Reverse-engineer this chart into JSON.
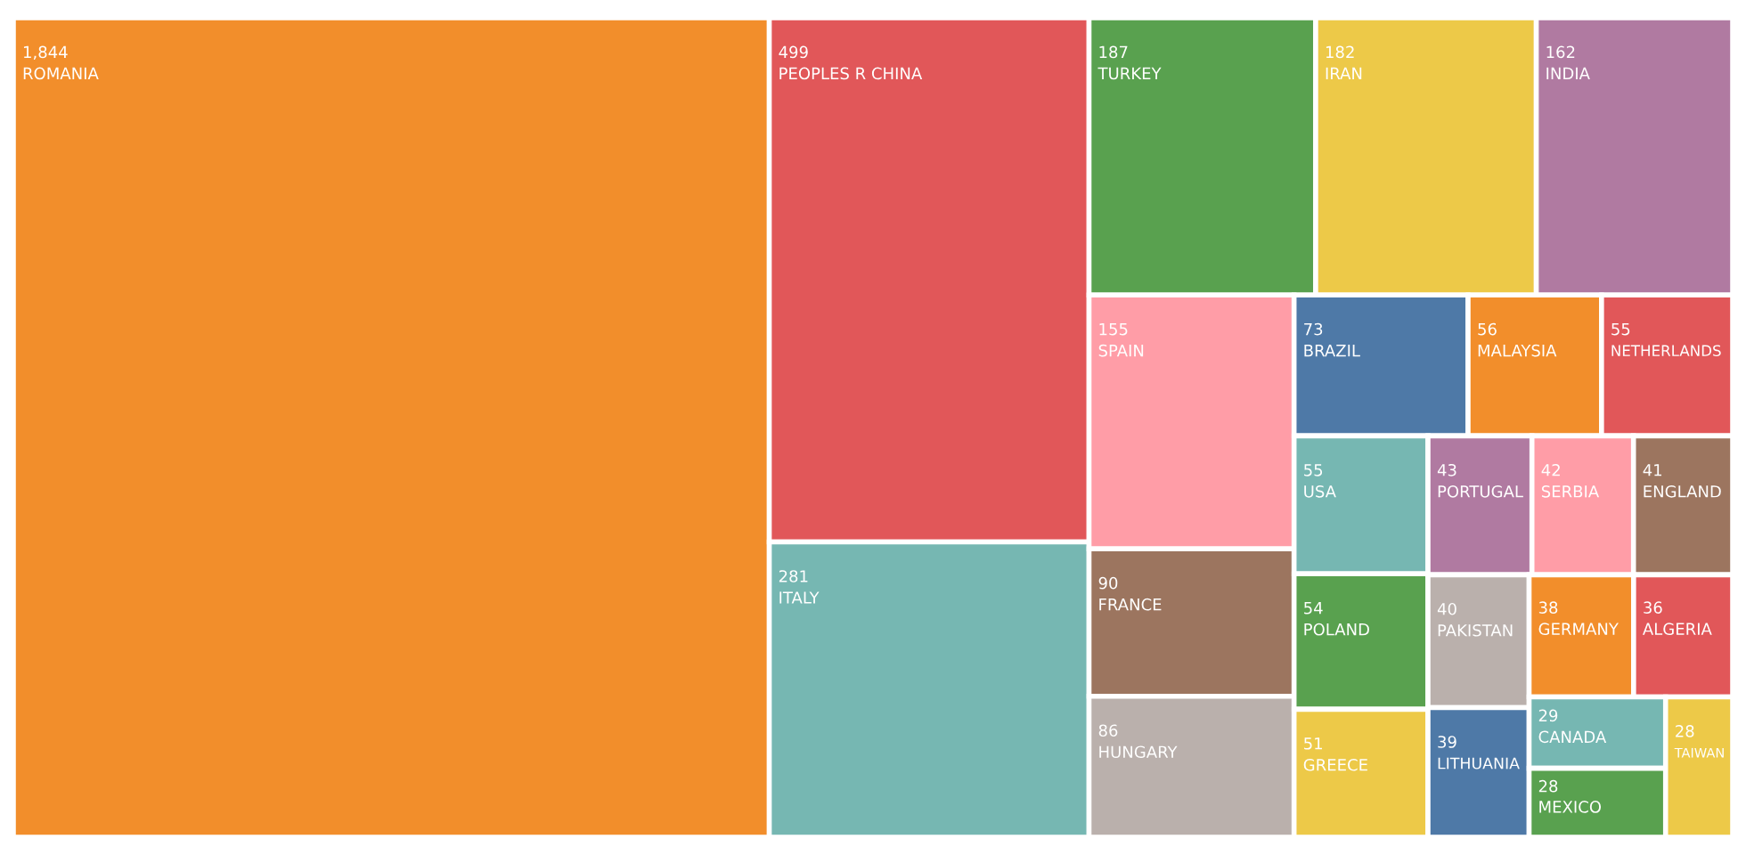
{
  "chart_data": {
    "type": "other",
    "value_labels": [
      "1,844",
      "499",
      "281",
      "187",
      "182",
      "162",
      "155",
      "90",
      "86",
      "73",
      "56",
      "55",
      "55",
      "54",
      "51",
      "43",
      "42",
      "41",
      "40",
      "39",
      "38",
      "36",
      "29",
      "28",
      "28"
    ],
    "categories": [
      "ROMANIA",
      "PEOPLES R CHINA",
      "ITALY",
      "TURKEY",
      "IRAN",
      "INDIA",
      "SPAIN",
      "FRANCE",
      "HUNGARY",
      "BRAZIL",
      "MALAYSIA",
      "NETHERLANDS",
      "USA",
      "POLAND",
      "GREECE",
      "PORTUGAL",
      "SERBIA",
      "ENGLAND",
      "PAKISTAN",
      "LITHUANIA",
      "GERMANY",
      "ALGERIA",
      "CANADA",
      "MEXICO",
      "TAIWAN"
    ],
    "values": [
      1844,
      499,
      281,
      187,
      182,
      162,
      155,
      90,
      86,
      73,
      56,
      55,
      55,
      54,
      51,
      43,
      42,
      41,
      40,
      39,
      38,
      36,
      29,
      28,
      28
    ],
    "colors": [
      "#f28e2b",
      "#e15759",
      "#76b7b2",
      "#59a14f",
      "#edc948",
      "#b07aa1",
      "#ff9da7",
      "#9c755f",
      "#bab0ac",
      "#4e79a7",
      "#f28e2b",
      "#e15759",
      "#76b7b2",
      "#59a14f",
      "#edc948",
      "#b07aa1",
      "#ff9da7",
      "#9c755f",
      "#bab0ac",
      "#4e79a7",
      "#f28e2b",
      "#e15759",
      "#76b7b2",
      "#59a14f",
      "#edc948"
    ]
  }
}
